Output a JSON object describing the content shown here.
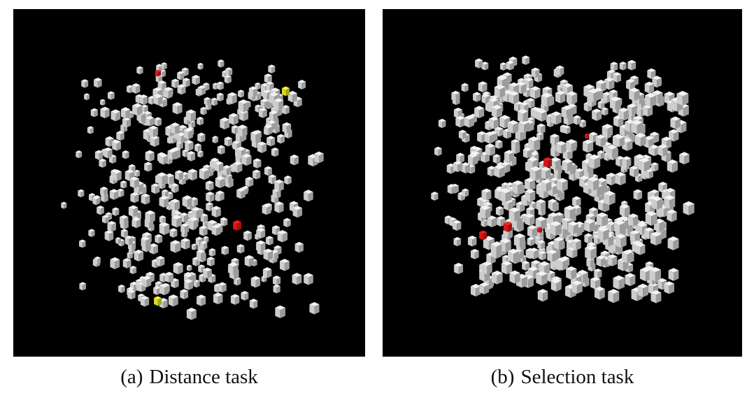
{
  "figure": {
    "panels": [
      {
        "id": "a",
        "caption_label": "(a)",
        "caption_text": "Distance task",
        "highlight_colors": {
          "red": "#e01818",
          "yellow": "#e8e02a"
        },
        "cube_color": "#d8d8d8",
        "red_cube_count": 2,
        "yellow_cube_count": 2
      },
      {
        "id": "b",
        "caption_label": "(b)",
        "caption_text": "Selection task",
        "highlight_colors": {
          "red": "#e01818"
        },
        "cube_color": "#d8d8d8",
        "red_cube_count": 5
      }
    ],
    "background_color": "#000000"
  }
}
